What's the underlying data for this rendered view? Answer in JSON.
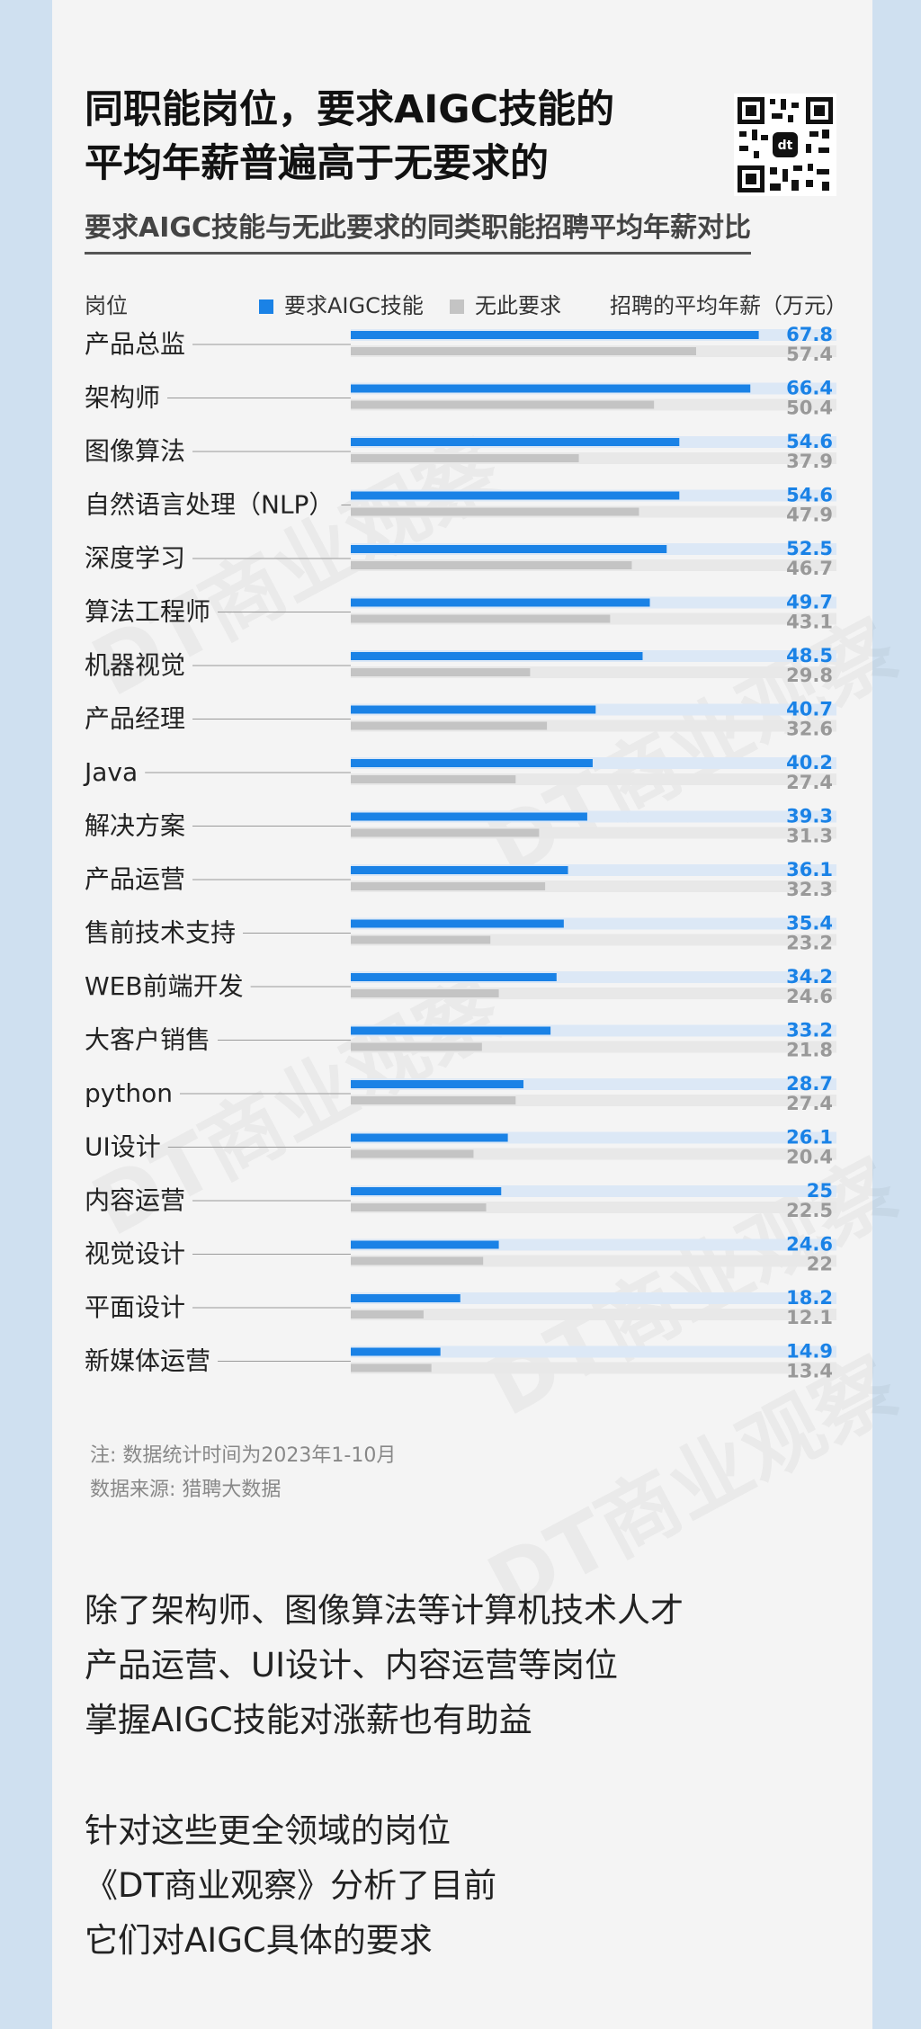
{
  "title_line1": "同职能岗位，要求AIGC技能的",
  "title_line2": "平均年薪普遍高于无要求的",
  "chart_data": {
    "type": "bar",
    "title": "要求AIGC技能与无此要求的同类职能招聘平均年薪对比",
    "category_header": "岗位",
    "value_header": "招聘的平均年薪（万元）",
    "categories": [
      "产品总监",
      "架构师",
      "图像算法",
      "自然语言处理（NLP）",
      "深度学习",
      "算法工程师",
      "机器视觉",
      "产品经理",
      "Java",
      "解决方案",
      "产品运营",
      "售前技术支持",
      "WEB前端开发",
      "大客户销售",
      "python",
      "UI设计",
      "内容运营",
      "视觉设计",
      "平面设计",
      "新媒体运营"
    ],
    "series": [
      {
        "name": "要求AIGC技能",
        "color": "#1a82e6",
        "labels": [
          "67.8",
          "66.4",
          "54.6",
          "54.6",
          "52.5",
          "49.7",
          "48.5",
          "40.7",
          "40.2",
          "39.3",
          "36.1",
          "35.4",
          "34.2",
          "33.2",
          "28.7",
          "26.1",
          "25",
          "24.6",
          "18.2",
          "14.9"
        ],
        "values": [
          67.8,
          66.4,
          54.6,
          54.6,
          52.5,
          49.7,
          48.5,
          40.7,
          40.2,
          39.3,
          36.1,
          35.4,
          34.2,
          33.2,
          28.7,
          26.1,
          25,
          24.6,
          18.2,
          14.9
        ]
      },
      {
        "name": "无此要求",
        "color": "#c4c4c4",
        "labels": [
          "57.4",
          "50.4",
          "37.9",
          "47.9",
          "46.7",
          "43.1",
          "29.8",
          "32.6",
          "27.4",
          "31.3",
          "32.3",
          "23.2",
          "24.6",
          "21.8",
          "27.4",
          "20.4",
          "22.5",
          "22",
          "12.1",
          "13.4"
        ],
        "values": [
          57.4,
          50.4,
          37.9,
          47.9,
          46.7,
          43.1,
          29.8,
          32.6,
          27.4,
          31.3,
          32.3,
          23.2,
          24.6,
          21.8,
          27.4,
          20.4,
          22.5,
          22,
          12.1,
          13.4
        ]
      }
    ],
    "xlim": [
      0,
      80
    ],
    "legend_placement": "top"
  },
  "colors": {
    "accent": "#1a82e6",
    "secondary": "#c4c4c4",
    "track_blue": "#dce8f6",
    "track_gray": "#e8e8e8"
  },
  "notes": {
    "line1": "注: 数据统计时间为2023年1-10月",
    "line2": "数据来源: 猎聘大数据"
  },
  "paragraph1": [
    "除了架构师、图像算法等计算机技术人才",
    "产品运营、UI设计、内容运营等岗位",
    "掌握AIGC技能对涨薪也有助益"
  ],
  "paragraph2": [
    "针对这些更全领域的岗位",
    "《DT商业观察》分析了目前",
    "它们对AIGC具体的要求"
  ],
  "qr_badge": "dt",
  "watermark": "DT商业观察"
}
